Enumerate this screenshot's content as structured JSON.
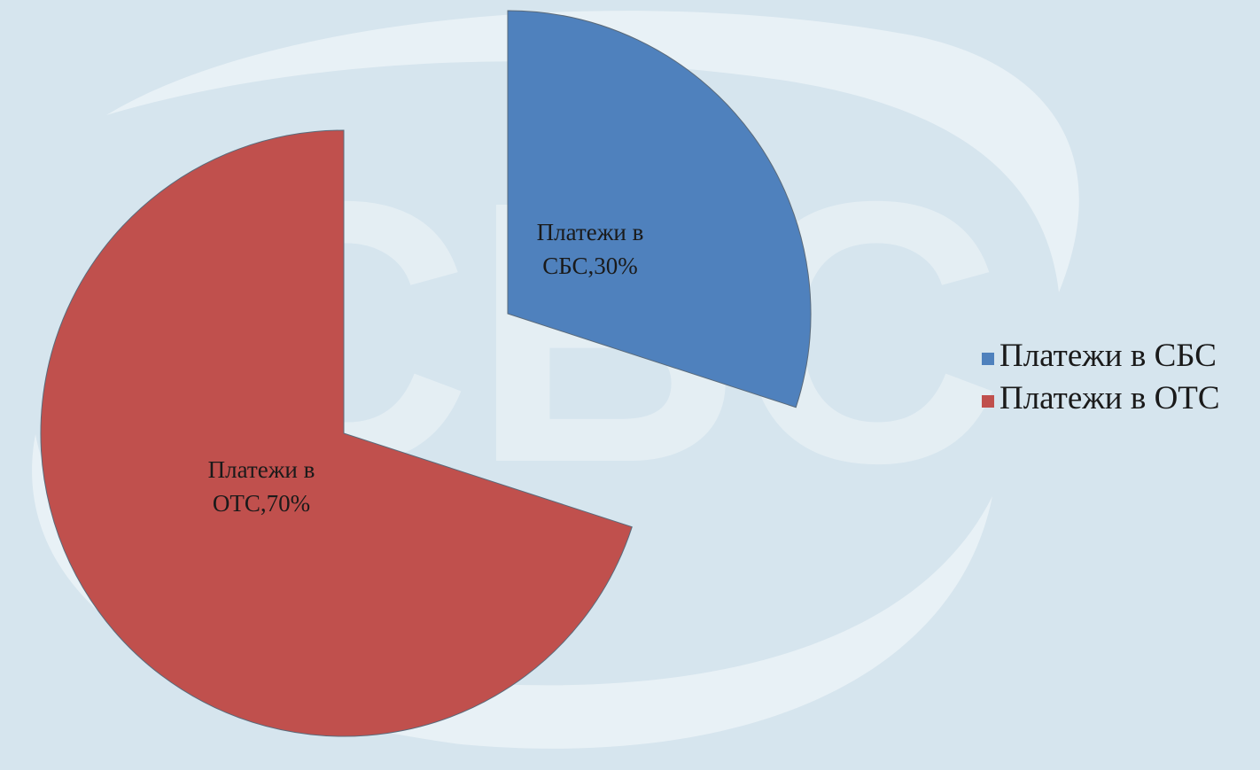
{
  "watermark": {
    "logo_text": "СБС",
    "color": "#ffffff"
  },
  "chart_data": {
    "type": "pie",
    "exploded": true,
    "slices": [
      {
        "name": "Платежи в СБС",
        "value": 30,
        "color": "#4f81bd",
        "label": "Платежи в\nСБС,30%"
      },
      {
        "name": "Платежи в ОТС",
        "value": 70,
        "color": "#c0504d",
        "label": "Платежи в\nОТС,70%"
      }
    ],
    "legend": {
      "placement": "right",
      "items": [
        "Платежи в СБС",
        "Платежи в ОТС"
      ]
    }
  }
}
